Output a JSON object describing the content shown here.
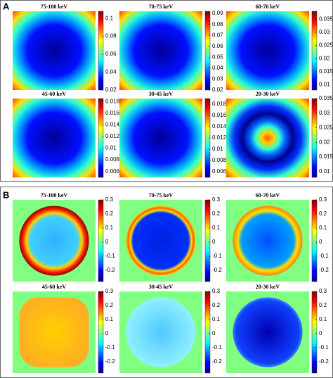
{
  "panel_labels": [
    "A",
    "B"
  ],
  "chart_data": [
    {
      "type": "heatmap",
      "title": "75-100 keV",
      "zlim": [
        0.02,
        0.108
      ],
      "zticks": [
        0.02,
        0.04,
        0.06,
        0.08,
        0.1
      ]
    },
    {
      "type": "heatmap",
      "title": "70-75 keV",
      "zlim": [
        0.02,
        0.092
      ],
      "zticks": [
        0.02,
        0.03,
        0.04,
        0.05,
        0.06,
        0.07,
        0.08,
        0.09
      ]
    },
    {
      "type": "heatmap",
      "title": "60-70 keV",
      "zlim": [
        0.008,
        0.038
      ],
      "zticks": [
        0.01,
        0.015,
        0.02,
        0.025,
        0.03,
        0.035
      ]
    },
    {
      "type": "heatmap",
      "title": "45-60 keV",
      "zlim": [
        0.005,
        0.0185
      ],
      "zticks": [
        0.006,
        0.008,
        0.01,
        0.012,
        0.014,
        0.016,
        0.018
      ]
    },
    {
      "type": "heatmap",
      "title": "30-45 keV",
      "zlim": [
        0.005,
        0.019
      ],
      "zticks": [
        0.006,
        0.008,
        0.01,
        0.012,
        0.014,
        0.016,
        0.018
      ]
    },
    {
      "type": "heatmap",
      "title": "20-30 keV",
      "zlim": [
        0.008,
        0.035
      ],
      "zticks": [
        0.01,
        0.015,
        0.02,
        0.025,
        0.03,
        0.035
      ]
    },
    {
      "type": "heatmap",
      "title": "75-100 keV",
      "zlim": [
        -0.28,
        0.3
      ],
      "zticks": [
        -0.2,
        -0.1,
        0,
        0.1,
        0.2,
        0.3
      ]
    },
    {
      "type": "heatmap",
      "title": "70-75 keV",
      "zlim": [
        -0.28,
        0.3
      ],
      "zticks": [
        -0.2,
        -0.1,
        0,
        0.1,
        0.2,
        0.3
      ]
    },
    {
      "type": "heatmap",
      "title": "60-70 keV",
      "zlim": [
        -0.28,
        0.3
      ],
      "zticks": [
        -0.2,
        -0.1,
        0,
        0.1,
        0.2,
        0.3
      ]
    },
    {
      "type": "heatmap",
      "title": "45-60 keV",
      "zlim": [
        -0.28,
        0.3
      ],
      "zticks": [
        -0.2,
        -0.1,
        0,
        0.1,
        0.2,
        0.3
      ]
    },
    {
      "type": "heatmap",
      "title": "30-45 keV",
      "zlim": [
        -0.28,
        0.3
      ],
      "zticks": [
        -0.2,
        -0.1,
        0,
        0.1,
        0.2,
        0.3
      ]
    },
    {
      "type": "heatmap",
      "title": "20-30 keV",
      "zlim": [
        -0.28,
        0.3
      ],
      "zticks": [
        -0.2,
        -0.1,
        0,
        0.1,
        0.2,
        0.3
      ]
    }
  ]
}
